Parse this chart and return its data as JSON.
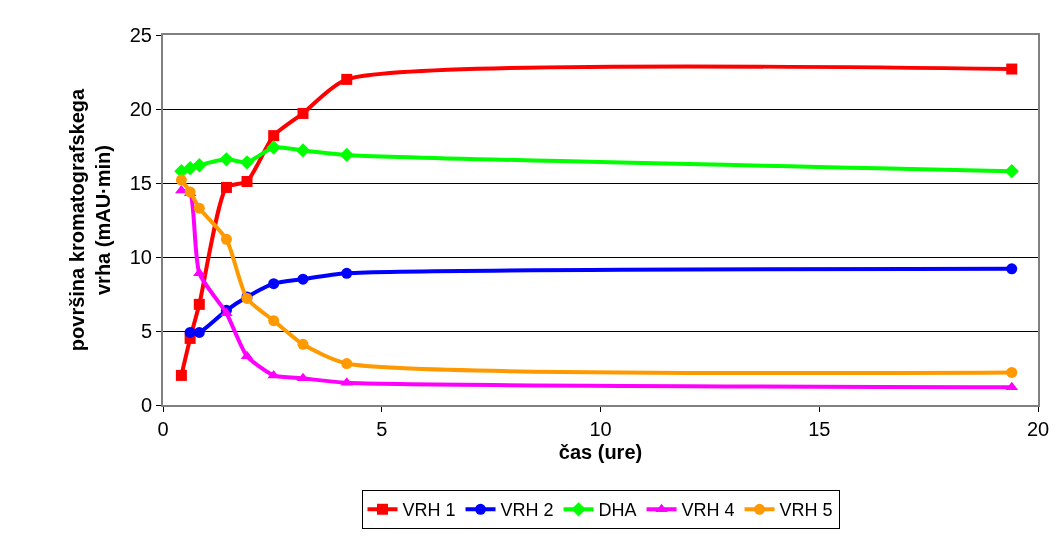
{
  "chart_data": {
    "type": "line",
    "xlabel": "čas (ure)",
    "ylabel": "površina kromatografskega\nvrha (mAU·min)",
    "xlim": [
      0,
      20
    ],
    "xticks": [
      0,
      5,
      10,
      15,
      20
    ],
    "ylim": [
      0,
      25
    ],
    "yticks": [
      0,
      5,
      10,
      15,
      20,
      25
    ],
    "grid": "y",
    "legend": "bottom",
    "line_style": "solid",
    "series": [
      {
        "name": "VRH 1",
        "color": "#ff0000",
        "marker": "square",
        "x": [
          0.42,
          0.62,
          0.83,
          1.45,
          1.92,
          2.53,
          3.2,
          4.2,
          19.4
        ],
        "values": [
          2.0,
          4.5,
          6.8,
          14.7,
          15.1,
          18.2,
          19.7,
          22.0,
          22.7
        ]
      },
      {
        "name": "VRH 2",
        "color": "#0000ff",
        "marker": "circle",
        "x": [
          0.62,
          0.83,
          1.45,
          1.92,
          2.53,
          3.2,
          4.2,
          19.4
        ],
        "values": [
          4.9,
          4.9,
          6.4,
          7.3,
          8.2,
          8.5,
          8.9,
          9.2
        ]
      },
      {
        "name": "DHA",
        "color": "#00ff00",
        "marker": "diamond",
        "x": [
          0.42,
          0.62,
          0.83,
          1.45,
          1.92,
          2.53,
          3.2,
          4.2,
          19.4
        ],
        "values": [
          15.8,
          16.0,
          16.2,
          16.6,
          16.4,
          17.4,
          17.2,
          16.9,
          15.8
        ]
      },
      {
        "name": "VRH 4",
        "color": "#ff00ff",
        "marker": "triangle",
        "x": [
          0.42,
          0.62,
          0.83,
          1.45,
          1.92,
          2.53,
          3.2,
          4.2,
          19.4
        ],
        "values": [
          14.5,
          14.3,
          8.9,
          6.2,
          3.3,
          2.0,
          1.8,
          1.5,
          1.2
        ]
      },
      {
        "name": "VRH 5",
        "color": "#ff9900",
        "marker": "circle",
        "x": [
          0.42,
          0.62,
          0.83,
          1.45,
          1.92,
          2.53,
          3.2,
          4.2,
          19.4
        ],
        "values": [
          15.2,
          14.4,
          13.3,
          11.2,
          7.2,
          5.7,
          4.1,
          2.8,
          2.2
        ]
      }
    ]
  }
}
